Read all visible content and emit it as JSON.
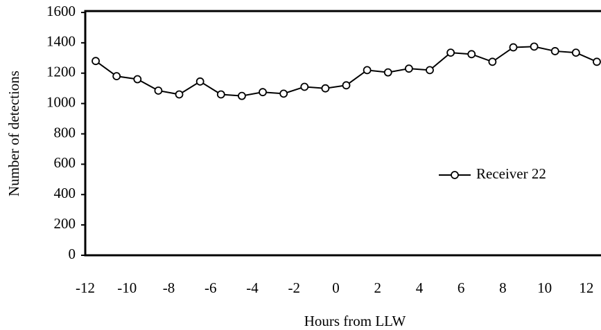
{
  "chart_data": {
    "type": "line",
    "x_label": "Hours from LLW",
    "y_label": "Number of detections",
    "x": [
      -11.5,
      -10.5,
      -9.5,
      -8.5,
      -7.5,
      -6.5,
      -5.5,
      -4.5,
      -3.5,
      -2.5,
      -1.5,
      -0.5,
      0.5,
      1.5,
      2.5,
      3.5,
      4.5,
      5.5,
      6.5,
      7.5,
      8.5,
      9.5,
      10.5,
      11.5,
      12.5
    ],
    "series": [
      {
        "name": "Receiver 22",
        "color": "#000000",
        "values": [
          1280,
          1180,
          1160,
          1085,
          1060,
          1145,
          1060,
          1050,
          1075,
          1065,
          1110,
          1100,
          1120,
          1220,
          1205,
          1230,
          1220,
          1335,
          1325,
          1275,
          1370,
          1375,
          1345,
          1335,
          1275
        ]
      }
    ],
    "xlim": [
      -12,
      12.7
    ],
    "xticks": [
      -12,
      -10,
      -8,
      -6,
      -4,
      -2,
      0,
      2,
      4,
      6,
      8,
      10,
      12
    ],
    "ylim": [
      0,
      1600
    ],
    "yticks": [
      0,
      200,
      400,
      600,
      800,
      1000,
      1200,
      1400,
      1600
    ],
    "grid": false,
    "legend": "center right"
  }
}
